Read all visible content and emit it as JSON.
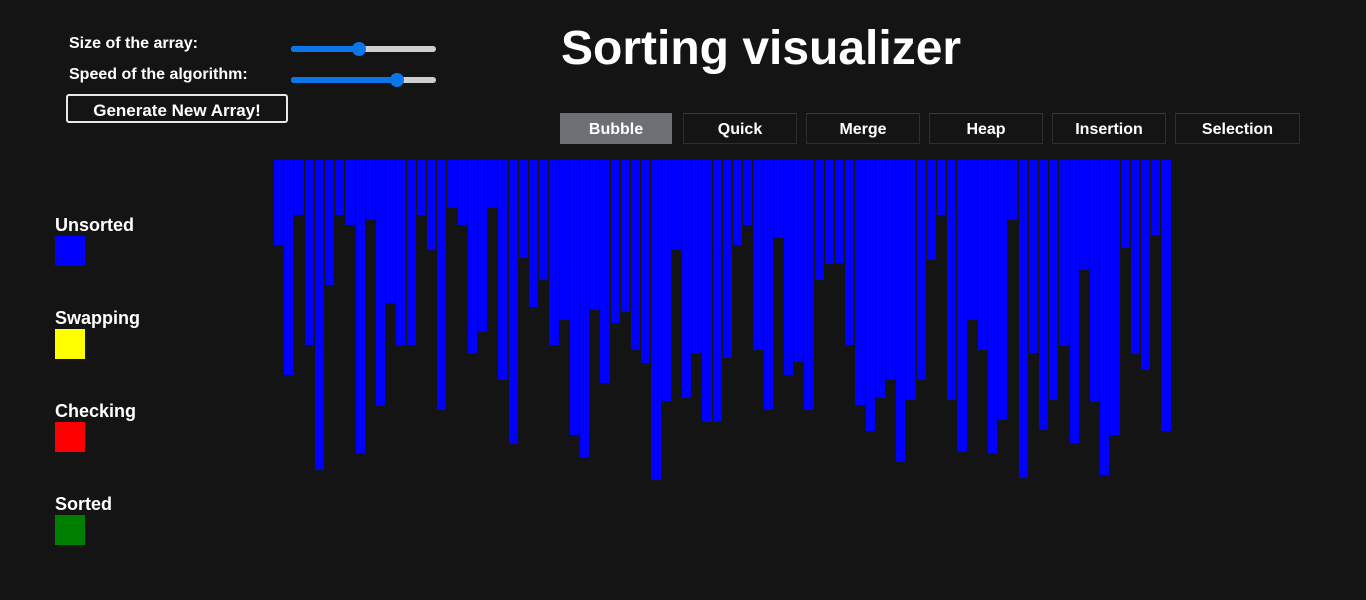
{
  "title": "Sorting visualizer",
  "controls": {
    "size_label": "Size of the array:",
    "speed_label": "Speed of the algorithm:",
    "size_value": 0.47,
    "speed_value": 0.73,
    "generate_label": "Generate New Array!",
    "accent_color": "#0b76e8"
  },
  "algorithms": [
    {
      "label": "Bubble",
      "active": true
    },
    {
      "label": "Quick",
      "active": false
    },
    {
      "label": "Merge",
      "active": false
    },
    {
      "label": "Heap",
      "active": false
    },
    {
      "label": "Insertion",
      "active": false
    },
    {
      "label": "Selection",
      "active": false
    }
  ],
  "legend": [
    {
      "label": "Unsorted",
      "color": "#0000ff"
    },
    {
      "label": "Swapping",
      "color": "#ffff00"
    },
    {
      "label": "Checking",
      "color": "#ff0000"
    },
    {
      "label": "Sorted",
      "color": "#008000"
    }
  ],
  "array": {
    "bar_color": "#0000ff",
    "values": [
      85,
      215,
      55,
      185,
      310,
      125,
      55,
      65,
      293,
      60,
      246,
      143,
      186,
      185,
      55,
      90,
      250,
      48,
      65,
      193,
      172,
      48,
      220,
      284,
      98,
      147,
      120,
      185,
      160,
      275,
      297,
      150,
      223,
      163,
      152,
      190,
      203,
      320,
      241,
      90,
      238,
      193,
      262,
      262,
      198,
      85,
      65,
      190,
      250,
      78,
      215,
      202,
      250,
      120,
      104,
      103,
      185,
      245,
      271,
      238,
      220,
      302,
      240,
      220,
      100,
      55,
      240,
      292,
      160,
      190,
      293,
      260,
      60,
      318,
      193,
      270,
      240,
      186,
      283,
      110,
      242,
      315,
      275,
      88,
      194,
      210,
      75,
      271
    ]
  }
}
